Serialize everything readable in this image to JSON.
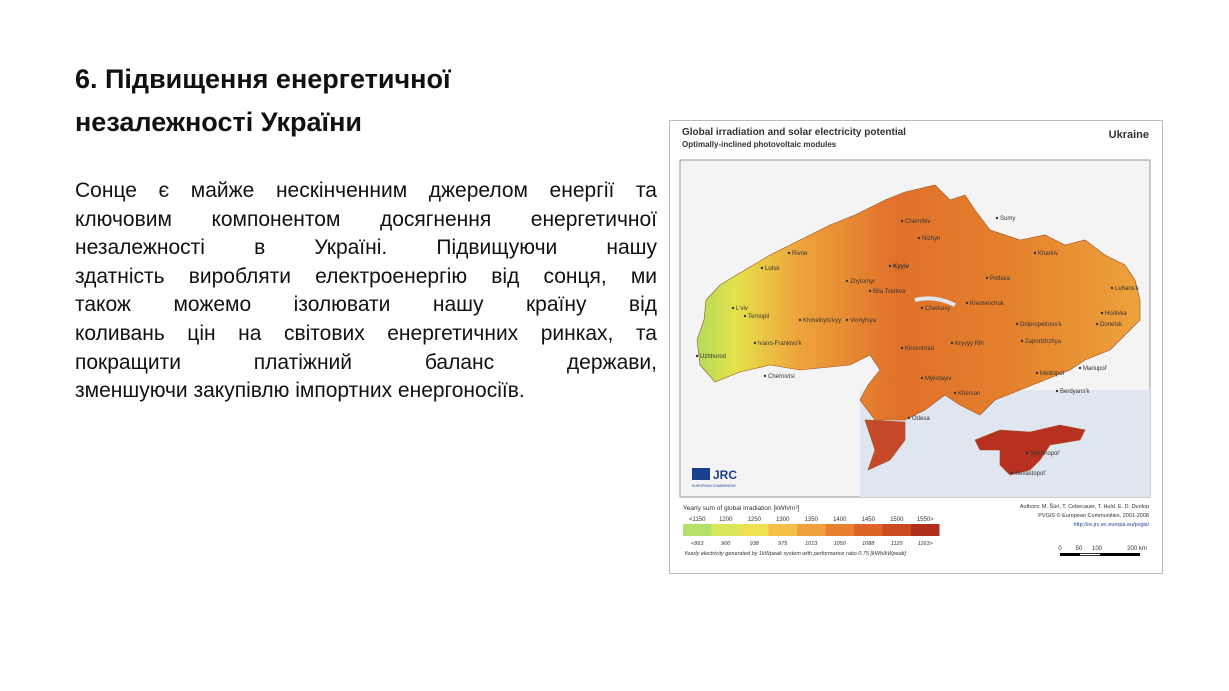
{
  "slide": {
    "title_lines": [
      "6. Підвищення енергетичної",
      "незалежності України"
    ],
    "paragraph_lines": [
      "Сонце є майже нескінченним джерелом енергії та",
      "ключовим компонентом досягнення енергетичної",
      "незалежності в Україні. Підвищуючи нашу",
      "здатність виробляти електроенергію від сонця, ми",
      "також можемо ізолювати нашу країну від",
      "коливань цін на світових енергетичних ринках, та",
      "покращити платіжний баланс держави,",
      "зменшуючи закупівлю імпортних енергоносіїв."
    ]
  },
  "map": {
    "title": "Global irradiation and solar electricity potential",
    "subtitle": "Optimally-inclined photovoltaic modules",
    "country": "Ukraine",
    "cities": [
      "Kyyiv",
      "Kharkiv",
      "L'viv",
      "Odesa",
      "Dnipropetrovs'k",
      "Donetsk",
      "Zaporizhzhya",
      "Chernihiv",
      "Sumy",
      "Nizhyn",
      "Poltava",
      "Zhytomyr",
      "Rivne",
      "Lutsk",
      "Ternopil",
      "Khmelnyts'kyy",
      "Vinnytsya",
      "Ivano-Frankivs'k",
      "Uzhhorod",
      "Chernivtsi",
      "Bila Tserkva",
      "Cherkasy",
      "Kremenchuk",
      "Kirovohrad",
      "Kryvyy Rih",
      "Mykolayiv",
      "Kherson",
      "Melitopol",
      "Berdyans'k",
      "Mariupol'",
      "Luhans'k",
      "Horlivka",
      "Simferopol'",
      "Sevastopol'"
    ],
    "logo": "JRC",
    "logo_sub": "EUROPEAN COMMISSION",
    "legend_title": "Yearly sum of global irradiation [kWh/m²]",
    "legend_top": [
      "<1150",
      "1200",
      "1250",
      "1300",
      "1350",
      "1400",
      "1450",
      "1500",
      "1550>"
    ],
    "legend_bottom": [
      "<863",
      "900",
      "938",
      "975",
      "1013",
      "1050",
      "1088",
      "1125",
      "1163>"
    ],
    "legend_note": "Yearly electricity generated by 1kWpeak system with performance ratio 0.75 [kWh/kWpeak]",
    "authors": "Authors: M. Šúri, T. Cebecauer, T. Huld, E. D. Dunlop",
    "copyright": "PVGIS © European Communities, 2001-2008",
    "url": "http://re.jrc.ec.europa.eu/pvgis/",
    "scale_labels": [
      "0",
      "50",
      "100",
      "200 km"
    ]
  }
}
